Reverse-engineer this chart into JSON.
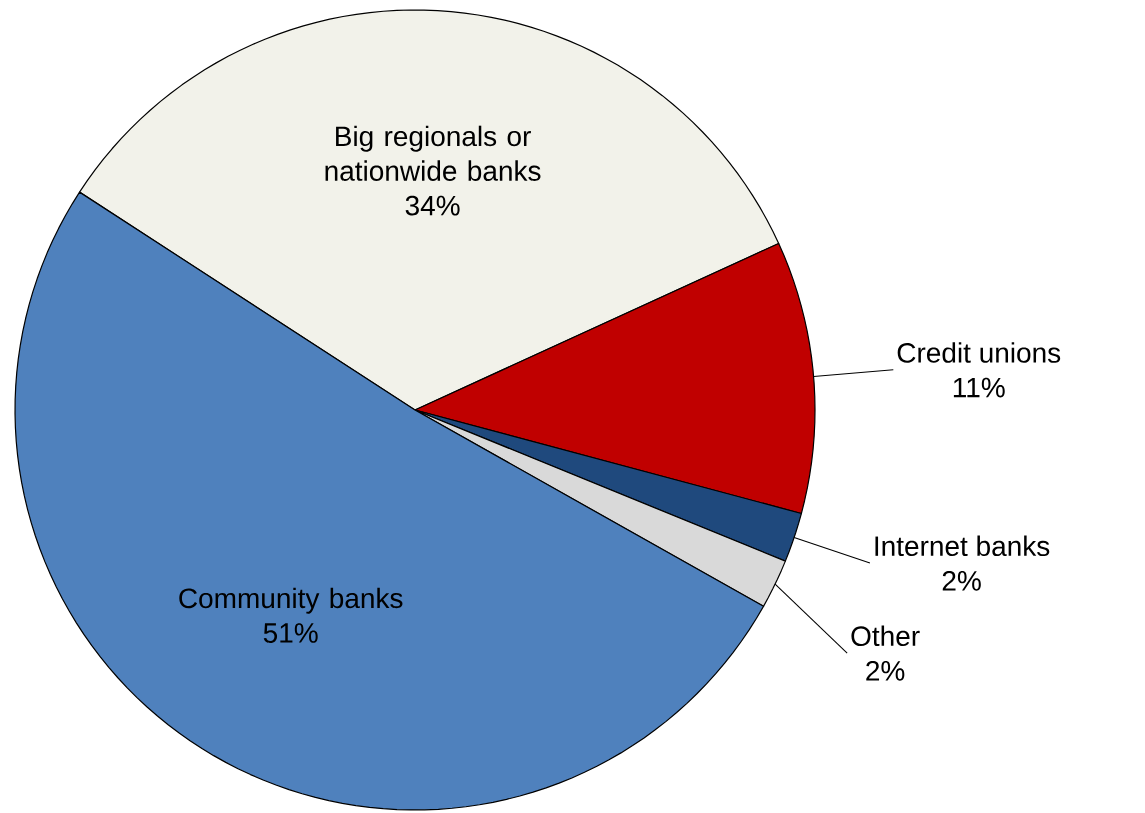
{
  "chart_data": {
    "type": "pie",
    "categories": [
      "Big regionals or nationwide banks",
      "Credit unions",
      "Internet banks",
      "Other",
      "Community banks"
    ],
    "values": [
      34,
      11,
      2,
      2,
      51
    ],
    "value_labels": [
      "34%",
      "11%",
      "2%",
      "2%",
      "51%"
    ],
    "colors": [
      "#f2f2ea",
      "#c00000",
      "#1f497d",
      "#d9d9d9",
      "#4f81bd"
    ]
  }
}
